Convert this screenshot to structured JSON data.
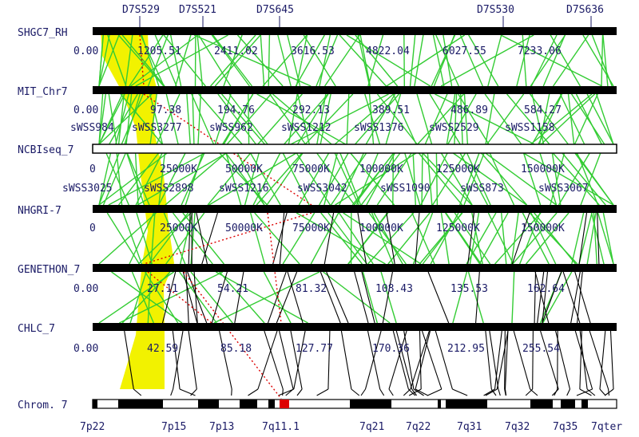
{
  "colors": {
    "text": "#1a1a66",
    "map_bar": "#000000",
    "link_green": "#33cc33",
    "link_black": "#000000",
    "highlight_yellow": "#f2f200",
    "dotted_red": "#dd0000",
    "chrom_band_red": "#dd0000"
  },
  "top_markers": [
    "D7S529",
    "D7S521",
    "D7S645",
    "D7S530",
    "D7S636"
  ],
  "maps": [
    {
      "name": "SHGC7_RH",
      "ticks": [
        "0.00",
        "1205.51",
        "2411.02",
        "3616.53",
        "4822.04",
        "6027.55",
        "7233.06"
      ]
    },
    {
      "name": "MIT_Chr7",
      "ticks": [
        "0.00",
        "97.38",
        "194.76",
        "292.13",
        "389.51",
        "486.89",
        "584.27"
      ],
      "markers": [
        "sWSS984",
        "sWSS3277",
        "sWSS962",
        "sWSS1212",
        "sWSS1376",
        "sWSS2529",
        "sWSS1158"
      ]
    },
    {
      "name": "NCBIseq_7",
      "ticks": [
        "0",
        "25000K",
        "50000K",
        "75000K",
        "100000K",
        "125000K",
        "150000K"
      ],
      "markers": [
        "sWSS3025",
        "sWSS2898",
        "sWSS1216",
        "sWSS3042",
        "sWSS1090",
        "sWSS873",
        "sWSS3067"
      ]
    },
    {
      "name": "NHGRI-7",
      "ticks": [
        "0",
        "25000K",
        "50000K",
        "75000K",
        "100000K",
        "125000K",
        "150000K"
      ]
    },
    {
      "name": "GENETHON_7",
      "ticks": [
        "0.00",
        "27.11",
        "54.21",
        "81.32",
        "108.43",
        "135.53",
        "162.64"
      ]
    },
    {
      "name": "CHLC_7",
      "ticks": [
        "0.00",
        "42.59",
        "85.18",
        "127.77",
        "170.36",
        "212.95",
        "255.54"
      ]
    }
  ],
  "chromosome": {
    "name": "Chrom. 7",
    "bands": [
      "7p22",
      "7p15",
      "7p13",
      "7q11.1",
      "7q21",
      "7q22",
      "7q31",
      "7q32",
      "7q35",
      "7qter"
    ]
  }
}
